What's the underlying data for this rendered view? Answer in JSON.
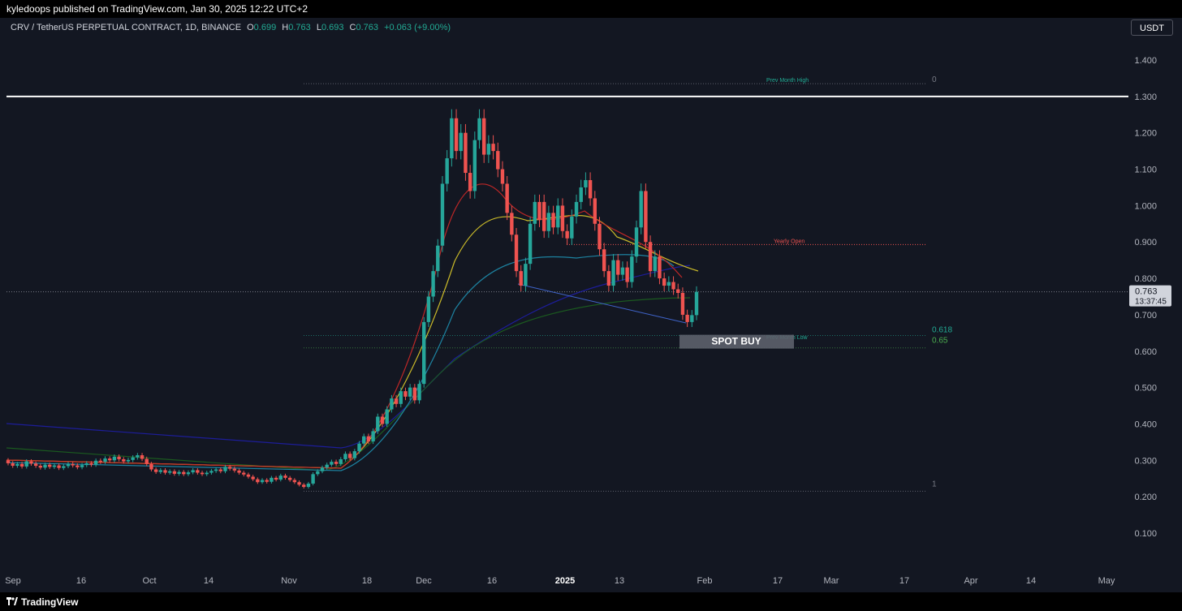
{
  "header": {
    "published": "kyledoops published on TradingView.com, Jan 30, 2025 12:22 UTC+2"
  },
  "legend": {
    "symbol": "CRV / TetherUS PERPETUAL CONTRACT, 1D, BINANCE",
    "open_label": "O",
    "open": "0.699",
    "high_label": "H",
    "high": "0.763",
    "low_label": "L",
    "low": "0.693",
    "close_label": "C",
    "close": "0.763",
    "change": "+0.063 (+9.00%)"
  },
  "currency_button": "USDT",
  "footer": {
    "brand": "TradingView",
    "logo_icon": "tradingview-logo-icon"
  },
  "colors": {
    "background": "#131722",
    "up": "#26a69a",
    "down": "#ef5350",
    "accent_green": "#22ab94"
  },
  "chart_data": {
    "type": "candlestick",
    "y_axis": {
      "min": 0.05,
      "max": 1.45,
      "ticks": [
        "1.400",
        "1.300",
        "1.200",
        "1.100",
        "1.000",
        "0.900",
        "0.800",
        "0.700",
        "0.600",
        "0.500",
        "0.400",
        "0.300",
        "0.200",
        "0.100"
      ]
    },
    "x_axis": {
      "ticks": [
        "Sep",
        "16",
        "Oct",
        "14",
        "Nov",
        "18",
        "Dec",
        "16",
        "2025",
        "13",
        "Feb",
        "17",
        "Mar",
        "17",
        "Apr",
        "14",
        "May"
      ]
    },
    "last_price": {
      "value": "0.763",
      "countdown": "13:37:45"
    },
    "annotations": {
      "prev_month_high": {
        "label": "Prev Month High",
        "value": 1.335
      },
      "yearly_open": {
        "label": "Yearly Open",
        "value": 0.893
      },
      "prev_month_low": {
        "label": "Prev Month Low",
        "value": 0.635
      },
      "resistance": {
        "value": 1.3
      },
      "spot_buy": "SPOT BUY",
      "fib_0": "0",
      "fib_1": "1",
      "fib_0618": "0.618",
      "fib_065": "0.65",
      "fib_0618_value": 0.643,
      "fib_065_value": 0.609,
      "fib_1_value": 0.215
    },
    "candles": [
      [
        0.3,
        0.292
      ],
      [
        0.292,
        0.285
      ],
      [
        0.285,
        0.29
      ],
      [
        0.29,
        0.283
      ],
      [
        0.283,
        0.297
      ],
      [
        0.297,
        0.291
      ],
      [
        0.291,
        0.285
      ],
      [
        0.285,
        0.28
      ],
      [
        0.28,
        0.288
      ],
      [
        0.288,
        0.282
      ],
      [
        0.282,
        0.286
      ],
      [
        0.286,
        0.279
      ],
      [
        0.279,
        0.284
      ],
      [
        0.284,
        0.29
      ],
      [
        0.29,
        0.286
      ],
      [
        0.286,
        0.281
      ],
      [
        0.281,
        0.287
      ],
      [
        0.287,
        0.292
      ],
      [
        0.292,
        0.288
      ],
      [
        0.288,
        0.299
      ],
      [
        0.299,
        0.296
      ],
      [
        0.296,
        0.305
      ],
      [
        0.305,
        0.3
      ],
      [
        0.3,
        0.31
      ],
      [
        0.31,
        0.303
      ],
      [
        0.303,
        0.297
      ],
      [
        0.297,
        0.301
      ],
      [
        0.301,
        0.308
      ],
      [
        0.308,
        0.314
      ],
      [
        0.314,
        0.304
      ],
      [
        0.304,
        0.29
      ],
      [
        0.29,
        0.275
      ],
      [
        0.275,
        0.268
      ],
      [
        0.268,
        0.273
      ],
      [
        0.273,
        0.266
      ],
      [
        0.266,
        0.27
      ],
      [
        0.27,
        0.263
      ],
      [
        0.263,
        0.268
      ],
      [
        0.268,
        0.262
      ],
      [
        0.262,
        0.267
      ],
      [
        0.267,
        0.273
      ],
      [
        0.273,
        0.266
      ],
      [
        0.266,
        0.262
      ],
      [
        0.262,
        0.266
      ],
      [
        0.266,
        0.271
      ],
      [
        0.271,
        0.275
      ],
      [
        0.275,
        0.27
      ],
      [
        0.27,
        0.282
      ],
      [
        0.282,
        0.277
      ],
      [
        0.277,
        0.272
      ],
      [
        0.272,
        0.266
      ],
      [
        0.266,
        0.261
      ],
      [
        0.261,
        0.255
      ],
      [
        0.255,
        0.248
      ],
      [
        0.248,
        0.24
      ],
      [
        0.24,
        0.246
      ],
      [
        0.246,
        0.241
      ],
      [
        0.241,
        0.252
      ],
      [
        0.252,
        0.247
      ],
      [
        0.247,
        0.258
      ],
      [
        0.258,
        0.252
      ],
      [
        0.252,
        0.246
      ],
      [
        0.246,
        0.24
      ],
      [
        0.24,
        0.233
      ],
      [
        0.233,
        0.227
      ],
      [
        0.227,
        0.236
      ],
      [
        0.236,
        0.262
      ],
      [
        0.262,
        0.27
      ],
      [
        0.27,
        0.28
      ],
      [
        0.28,
        0.288
      ],
      [
        0.288,
        0.296
      ],
      [
        0.296,
        0.29
      ],
      [
        0.29,
        0.303
      ],
      [
        0.303,
        0.318
      ],
      [
        0.318,
        0.306
      ],
      [
        0.306,
        0.325
      ],
      [
        0.325,
        0.346
      ],
      [
        0.346,
        0.366
      ],
      [
        0.366,
        0.352
      ],
      [
        0.352,
        0.38
      ],
      [
        0.38,
        0.42
      ],
      [
        0.42,
        0.4
      ],
      [
        0.4,
        0.44
      ],
      [
        0.44,
        0.47
      ],
      [
        0.47,
        0.455
      ],
      [
        0.455,
        0.49
      ],
      [
        0.49,
        0.475
      ],
      [
        0.475,
        0.5
      ],
      [
        0.5,
        0.465
      ],
      [
        0.465,
        0.51
      ],
      [
        0.51,
        0.68
      ],
      [
        0.68,
        0.75
      ],
      [
        0.75,
        0.82
      ],
      [
        0.82,
        0.89
      ],
      [
        0.89,
        1.06
      ],
      [
        1.06,
        1.13
      ],
      [
        1.13,
        1.24
      ],
      [
        1.24,
        1.15
      ],
      [
        1.15,
        1.2
      ],
      [
        1.2,
        1.09
      ],
      [
        1.09,
        1.04
      ],
      [
        1.04,
        1.18
      ],
      [
        1.18,
        1.24
      ],
      [
        1.24,
        1.14
      ],
      [
        1.14,
        1.17
      ],
      [
        1.17,
        1.15
      ],
      [
        1.15,
        1.1
      ],
      [
        1.1,
        1.06
      ],
      [
        1.06,
        0.98
      ],
      [
        0.98,
        0.92
      ],
      [
        0.92,
        0.82
      ],
      [
        0.82,
        0.78
      ],
      [
        0.78,
        0.84
      ],
      [
        0.84,
        0.95
      ],
      [
        0.95,
        1.01
      ],
      [
        1.01,
        0.96
      ],
      [
        1.01,
        0.93
      ],
      [
        0.93,
        0.98
      ],
      [
        0.98,
        0.94
      ],
      [
        0.94,
        1.0
      ],
      [
        1.0,
        0.93
      ],
      [
        0.93,
        0.91
      ],
      [
        0.91,
        0.97
      ],
      [
        0.97,
        1.01
      ],
      [
        1.01,
        1.05
      ],
      [
        1.05,
        1.07
      ],
      [
        1.07,
        1.02
      ],
      [
        1.02,
        0.95
      ],
      [
        0.95,
        0.88
      ],
      [
        0.88,
        0.82
      ],
      [
        0.82,
        0.78
      ],
      [
        0.78,
        0.85
      ],
      [
        0.85,
        0.81
      ],
      [
        0.81,
        0.83
      ],
      [
        0.83,
        0.79
      ],
      [
        0.79,
        0.86
      ],
      [
        0.86,
        0.94
      ],
      [
        0.94,
        1.04
      ],
      [
        1.04,
        0.9
      ],
      [
        0.9,
        0.82
      ],
      [
        0.82,
        0.86
      ],
      [
        0.86,
        0.8
      ],
      [
        0.8,
        0.78
      ],
      [
        0.78,
        0.79
      ],
      [
        0.79,
        0.77
      ],
      [
        0.77,
        0.76
      ],
      [
        0.76,
        0.7
      ],
      [
        0.7,
        0.68
      ],
      [
        0.68,
        0.699
      ],
      [
        0.699,
        0.763
      ]
    ]
  }
}
